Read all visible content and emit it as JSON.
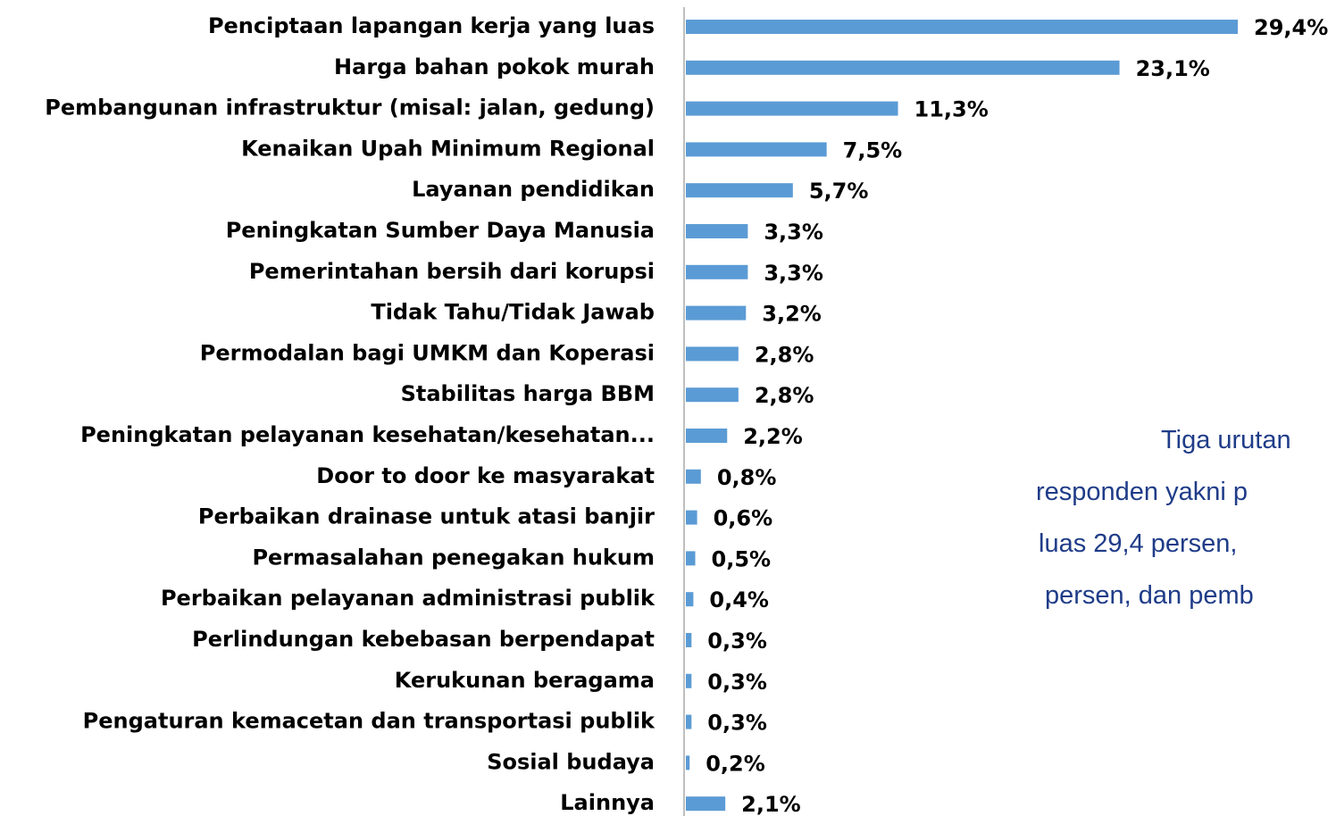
{
  "chart_data": {
    "type": "bar",
    "orientation": "horizontal",
    "categories": [
      "Penciptaan lapangan kerja yang luas",
      "Harga bahan pokok murah",
      "Pembangunan infrastruktur (misal: jalan, gedung)",
      "Kenaikan Upah Minimum Regional",
      "Layanan pendidikan",
      "Peningkatan Sumber Daya Manusia",
      "Pemerintahan bersih dari korupsi",
      "Tidak Tahu/Tidak Jawab",
      "Permodalan bagi UMKM dan Koperasi",
      "Stabilitas harga BBM",
      "Peningkatan pelayanan kesehatan/kesehatan...",
      "Door to door ke masyarakat",
      "Perbaikan drainase untuk atasi banjir",
      "Permasalahan penegakan hukum",
      "Perbaikan pelayanan administrasi publik",
      "Perlindungan kebebasan berpendapat",
      "Kerukunan beragama",
      "Pengaturan kemacetan dan transportasi publik",
      "Sosial budaya",
      "Lainnya"
    ],
    "values": [
      29.4,
      23.1,
      11.3,
      7.5,
      5.7,
      3.3,
      3.3,
      3.2,
      2.8,
      2.8,
      2.2,
      0.8,
      0.6,
      0.5,
      0.4,
      0.3,
      0.3,
      0.3,
      0.2,
      2.1
    ],
    "value_labels": [
      "29,4%",
      "23,1%",
      "11,3%",
      "7,5%",
      "5,7%",
      "3,3%",
      "3,3%",
      "3,2%",
      "2,8%",
      "2,8%",
      "2,2%",
      "0,8%",
      "0,6%",
      "0,5%",
      "0,4%",
      "0,3%",
      "0,3%",
      "0,3%",
      "0,2%",
      "2,1%"
    ],
    "color": "#5b9bd5",
    "annotation": [
      "Tiga urutan",
      "responden yakni p",
      "luas 29,4 persen,",
      "persen, dan pemb"
    ]
  }
}
